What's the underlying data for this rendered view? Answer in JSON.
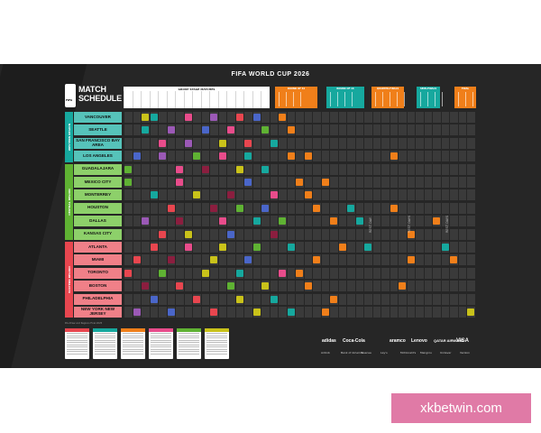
{
  "title": "FIFA WORLD CUP 2026",
  "logo": {
    "line1": "MATCH",
    "line2": "SCHEDULE",
    "badge": "FIFA"
  },
  "group_header": "GROUP STAGE MATCHES",
  "knockout_headers": [
    {
      "label": "ROUND OF 32",
      "color": "#f07f1a"
    },
    {
      "label": "ROUND OF 16",
      "color": "#16a89e"
    },
    {
      "label": "QUARTER-FINALS",
      "color": "#f07f1a"
    },
    {
      "label": "SEMI-FINALS",
      "color": "#16a89e"
    },
    {
      "label": "FINAL",
      "color": "#f07f1a"
    }
  ],
  "regions": [
    {
      "name": "WESTERN REGION",
      "color": "#16a89e"
    },
    {
      "name": "CENTRAL REGION",
      "color": "#5fb233"
    },
    {
      "name": "EASTERN REGION",
      "color": "#e8464f"
    }
  ],
  "cities": [
    {
      "name": "VANCOUVER",
      "region": 0
    },
    {
      "name": "SEATTLE",
      "region": 0
    },
    {
      "name": "SAN FRANCISCO BAY AREA",
      "region": 0
    },
    {
      "name": "LOS ANGELES",
      "region": 0
    },
    {
      "name": "GUADALAJARA",
      "region": 1
    },
    {
      "name": "MEXICO CITY",
      "region": 1
    },
    {
      "name": "MONTERREY",
      "region": 1
    },
    {
      "name": "HOUSTON",
      "region": 1
    },
    {
      "name": "DALLAS",
      "region": 1
    },
    {
      "name": "KANSAS CITY",
      "region": 1
    },
    {
      "name": "ATLANTA",
      "region": 2
    },
    {
      "name": "MIAMI",
      "region": 2
    },
    {
      "name": "TORONTO",
      "region": 2
    },
    {
      "name": "BOSTON",
      "region": 2
    },
    {
      "name": "PHILADELPHIA",
      "region": 2
    },
    {
      "name": "NEW YORK NEW JERSEY",
      "region": 2
    }
  ],
  "rest_days": [
    "REST DAY",
    "REST DAYS",
    "REST DAYS"
  ],
  "credit": "Pre-Draw and Regions Final 2025",
  "stage_boxes": [
    "#e8464f",
    "#16a89e",
    "#f07f1a",
    "#e84c8b",
    "#5fb233",
    "#c9c21a"
  ],
  "sponsors": [
    "adidas",
    "Coca-Cola",
    "aramco",
    "Lenovo",
    "QATAR AIRWAYS",
    "VISA"
  ],
  "sponsors_small": [
    "Airbnb",
    "Bank of America",
    "Hisense",
    "Lay's",
    "McDonald's",
    "Mengniu",
    "Unilever",
    "Verizon"
  ],
  "watermark": "xkbetwin.com",
  "matches": [
    [
      0,
      2,
      "#c9c21a"
    ],
    [
      0,
      3,
      "#16a89e"
    ],
    [
      0,
      7,
      "#e84c8b"
    ],
    [
      0,
      10,
      "#9b59b6"
    ],
    [
      0,
      13,
      "#e8464f"
    ],
    [
      0,
      15,
      "#4a66c9"
    ],
    [
      0,
      18,
      "#f07f1a"
    ],
    [
      1,
      2,
      "#16a89e"
    ],
    [
      1,
      5,
      "#9b59b6"
    ],
    [
      1,
      9,
      "#4a66c9"
    ],
    [
      1,
      12,
      "#e84c8b"
    ],
    [
      1,
      16,
      "#5fb233"
    ],
    [
      1,
      19,
      "#f07f1a"
    ],
    [
      2,
      4,
      "#e84c8b"
    ],
    [
      2,
      7,
      "#9b59b6"
    ],
    [
      2,
      11,
      "#c9c21a"
    ],
    [
      2,
      14,
      "#e8464f"
    ],
    [
      2,
      17,
      "#16a89e"
    ],
    [
      3,
      1,
      "#4a66c9"
    ],
    [
      3,
      4,
      "#9b59b6"
    ],
    [
      3,
      8,
      "#5fb233"
    ],
    [
      3,
      11,
      "#e84c8b"
    ],
    [
      3,
      14,
      "#16a89e"
    ],
    [
      3,
      19,
      "#f07f1a"
    ],
    [
      3,
      21,
      "#f07f1a"
    ],
    [
      3,
      31,
      "#f07f1a"
    ],
    [
      4,
      0,
      "#5fb233"
    ],
    [
      4,
      6,
      "#e84c8b"
    ],
    [
      4,
      9,
      "#8b1e3f"
    ],
    [
      4,
      13,
      "#c9c21a"
    ],
    [
      4,
      16,
      "#16a89e"
    ],
    [
      5,
      0,
      "#5fb233"
    ],
    [
      5,
      6,
      "#e84c8b"
    ],
    [
      5,
      14,
      "#4a66c9"
    ],
    [
      5,
      20,
      "#f07f1a"
    ],
    [
      5,
      23,
      "#f07f1a"
    ],
    [
      6,
      3,
      "#16a89e"
    ],
    [
      6,
      8,
      "#c9c21a"
    ],
    [
      6,
      12,
      "#8b1e3f"
    ],
    [
      6,
      17,
      "#e84c8b"
    ],
    [
      6,
      21,
      "#f07f1a"
    ],
    [
      7,
      5,
      "#e8464f"
    ],
    [
      7,
      10,
      "#8b1e3f"
    ],
    [
      7,
      13,
      "#5fb233"
    ],
    [
      7,
      16,
      "#4a66c9"
    ],
    [
      7,
      22,
      "#f07f1a"
    ],
    [
      7,
      26,
      "#16a89e"
    ],
    [
      7,
      31,
      "#f07f1a"
    ],
    [
      8,
      2,
      "#9b59b6"
    ],
    [
      8,
      6,
      "#8b1e3f"
    ],
    [
      8,
      11,
      "#e84c8b"
    ],
    [
      8,
      15,
      "#16a89e"
    ],
    [
      8,
      18,
      "#5fb233"
    ],
    [
      8,
      24,
      "#f07f1a"
    ],
    [
      8,
      27,
      "#16a89e"
    ],
    [
      8,
      36,
      "#f07f1a"
    ],
    [
      9,
      4,
      "#e8464f"
    ],
    [
      9,
      7,
      "#c9c21a"
    ],
    [
      9,
      12,
      "#4a66c9"
    ],
    [
      9,
      17,
      "#8b1e3f"
    ],
    [
      9,
      33,
      "#f07f1a"
    ],
    [
      10,
      3,
      "#e8464f"
    ],
    [
      10,
      7,
      "#e84c8b"
    ],
    [
      10,
      11,
      "#c9c21a"
    ],
    [
      10,
      15,
      "#5fb233"
    ],
    [
      10,
      19,
      "#16a89e"
    ],
    [
      10,
      25,
      "#f07f1a"
    ],
    [
      10,
      28,
      "#16a89e"
    ],
    [
      10,
      37,
      "#16a89e"
    ],
    [
      11,
      1,
      "#e8464f"
    ],
    [
      11,
      5,
      "#8b1e3f"
    ],
    [
      11,
      10,
      "#c9c21a"
    ],
    [
      11,
      14,
      "#4a66c9"
    ],
    [
      11,
      22,
      "#f07f1a"
    ],
    [
      11,
      33,
      "#f07f1a"
    ],
    [
      11,
      38,
      "#f07f1a"
    ],
    [
      12,
      0,
      "#e8464f"
    ],
    [
      12,
      4,
      "#5fb233"
    ],
    [
      12,
      9,
      "#c9c21a"
    ],
    [
      12,
      13,
      "#16a89e"
    ],
    [
      12,
      18,
      "#e84c8b"
    ],
    [
      12,
      20,
      "#f07f1a"
    ],
    [
      13,
      2,
      "#8b1e3f"
    ],
    [
      13,
      6,
      "#e8464f"
    ],
    [
      13,
      12,
      "#5fb233"
    ],
    [
      13,
      16,
      "#c9c21a"
    ],
    [
      13,
      21,
      "#f07f1a"
    ],
    [
      13,
      32,
      "#f07f1a"
    ],
    [
      14,
      3,
      "#4a66c9"
    ],
    [
      14,
      8,
      "#e8464f"
    ],
    [
      14,
      13,
      "#c9c21a"
    ],
    [
      14,
      17,
      "#16a89e"
    ],
    [
      14,
      24,
      "#f07f1a"
    ],
    [
      15,
      1,
      "#9b59b6"
    ],
    [
      15,
      5,
      "#4a66c9"
    ],
    [
      15,
      10,
      "#e8464f"
    ],
    [
      15,
      15,
      "#c9c21a"
    ],
    [
      15,
      19,
      "#16a89e"
    ],
    [
      15,
      23,
      "#f07f1a"
    ],
    [
      15,
      40,
      "#c9c21a"
    ]
  ]
}
